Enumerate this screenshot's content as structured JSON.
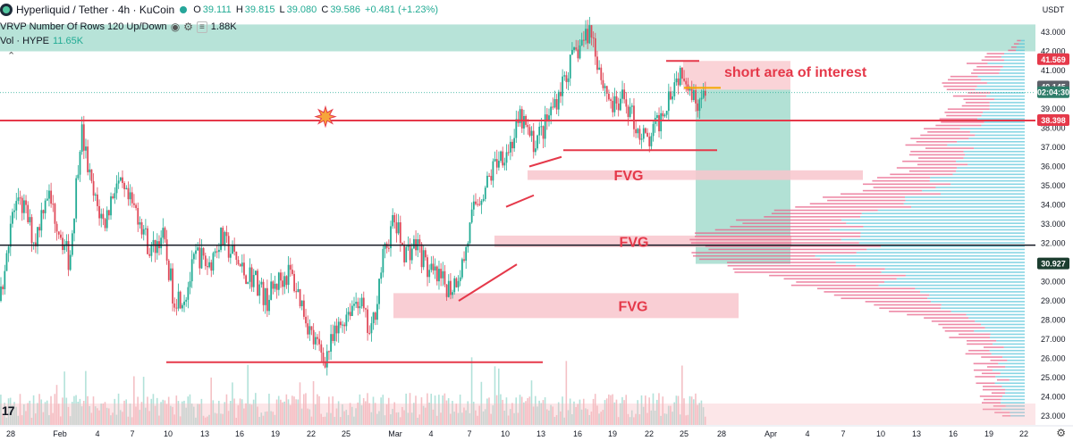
{
  "header": {
    "symbol_title": "Hyperliquid / Tether · 4h · KuCoin",
    "ohlc": {
      "open_label": "O",
      "open": "39.111",
      "high_label": "H",
      "high": "39.815",
      "low_label": "L",
      "low": "39.080",
      "close_label": "C",
      "close": "39.586",
      "change": "+0.481 (+1.23%)"
    },
    "indicator_vrvp": "VRVP Number Of Rows 120 Up/Down",
    "indicator_vrvp_value": "1.88K",
    "indicator_vol": "Vol · HYPE",
    "indicator_vol_value": "11.65K"
  },
  "axis": {
    "currency": "USDT",
    "price_ticks": [
      "43.000",
      "42.000",
      "41.000",
      "40.000",
      "39.000",
      "38.000",
      "37.000",
      "36.000",
      "35.000",
      "34.000",
      "33.000",
      "32.000",
      "31.000",
      "30.000",
      "29.000",
      "28.000",
      "27.000",
      "26.000",
      "25.000",
      "24.000",
      "23.000"
    ],
    "time_ticks": [
      "28",
      "Feb",
      "4",
      "7",
      "10",
      "13",
      "16",
      "19",
      "22",
      "25",
      "Mar",
      "4",
      "7",
      "10",
      "13",
      "16",
      "19",
      "22",
      "25",
      "28",
      "Apr",
      "4",
      "7",
      "10",
      "13",
      "16",
      "19",
      "22"
    ],
    "badges": [
      {
        "value": "41.569",
        "price": 41.569,
        "color": "#e5394a"
      },
      {
        "value": "40.145",
        "price": 40.145,
        "color": "#5d6069"
      },
      {
        "value": "02:04:30",
        "price": 39.85,
        "color": "#2e7d6a"
      },
      {
        "value": "38.398",
        "price": 38.398,
        "color": "#e5394a"
      },
      {
        "value": "30.927",
        "price": 30.927,
        "color": "#1b3d2f"
      }
    ]
  },
  "annotations": {
    "short_area_label": "short area of interest",
    "fvg_labels": [
      "FVG",
      "FVG",
      "FVG"
    ]
  },
  "colors": {
    "up_candle": "#22ab94",
    "down_candle": "#e04a5a",
    "support_line": "#e5394a",
    "fvg_fill": "#f8c6cc",
    "zone_fill": "#9fd9cb",
    "profile_up": "#56c3d9",
    "profile_down": "#e8638a"
  },
  "chart_data": {
    "type": "candlestick",
    "timeframe": "4h",
    "ylim": [
      22.6,
      43.6
    ],
    "price_scale_ticks": [
      43,
      42,
      41,
      40,
      39,
      38,
      37,
      36,
      35,
      34,
      33,
      32,
      31,
      30,
      29,
      28,
      27,
      26,
      25,
      24,
      23
    ],
    "key_levels": {
      "top_supply_zone": [
        42.0,
        43.4
      ],
      "short_area_of_interest": [
        40.0,
        41.5
      ],
      "red_resistance_line": 38.398,
      "black_line": 31.9,
      "bottom_support_line": 25.8,
      "fvg_zones": [
        [
          35.3,
          35.8
        ],
        [
          31.8,
          32.4
        ],
        [
          28.1,
          29.4
        ]
      ]
    },
    "price_path": [
      {
        "t": "Jan 27",
        "p": 29.0
      },
      {
        "t": "Jan 28",
        "p": 33.5
      },
      {
        "t": "Jan 29",
        "p": 34.0
      },
      {
        "t": "Jan 30",
        "p": 32.0
      },
      {
        "t": "Jan 31",
        "p": 34.8
      },
      {
        "t": "Feb 1",
        "p": 33.0
      },
      {
        "t": "Feb 2",
        "p": 31.0
      },
      {
        "t": "Feb 3",
        "p": 38.0
      },
      {
        "t": "Feb 4",
        "p": 34.5
      },
      {
        "t": "Feb 5",
        "p": 33.0
      },
      {
        "t": "Feb 6",
        "p": 35.2
      },
      {
        "t": "Feb 7",
        "p": 34.2
      },
      {
        "t": "Feb 8",
        "p": 33.5
      },
      {
        "t": "Feb 9",
        "p": 31.5
      },
      {
        "t": "Feb 10",
        "p": 32.5
      },
      {
        "t": "Feb 11",
        "p": 29.2
      },
      {
        "t": "Feb 12",
        "p": 29.3
      },
      {
        "t": "Feb 13",
        "p": 31.5
      },
      {
        "t": "Feb 14",
        "p": 30.8
      },
      {
        "t": "Feb 15",
        "p": 32.3
      },
      {
        "t": "Feb 16",
        "p": 31.5
      },
      {
        "t": "Feb 17",
        "p": 30.5
      },
      {
        "t": "Feb 18",
        "p": 30.2
      },
      {
        "t": "Feb 19",
        "p": 29.0
      },
      {
        "t": "Feb 20",
        "p": 30.0
      },
      {
        "t": "Feb 21",
        "p": 30.5
      },
      {
        "t": "Feb 22",
        "p": 29.0
      },
      {
        "t": "Feb 23",
        "p": 27.0
      },
      {
        "t": "Feb 24",
        "p": 26.0
      },
      {
        "t": "Feb 25",
        "p": 27.2
      },
      {
        "t": "Feb 26",
        "p": 28.5
      },
      {
        "t": "Feb 27",
        "p": 29.2
      },
      {
        "t": "Feb 28",
        "p": 27.0
      },
      {
        "t": "Mar 1",
        "p": 31.0
      },
      {
        "t": "Mar 2",
        "p": 33.2
      },
      {
        "t": "Mar 3",
        "p": 31.5
      },
      {
        "t": "Mar 4",
        "p": 32.0
      },
      {
        "t": "Mar 5",
        "p": 30.5
      },
      {
        "t": "Mar 6",
        "p": 30.0
      },
      {
        "t": "Mar 7",
        "p": 29.7
      },
      {
        "t": "Mar 8",
        "p": 31.0
      },
      {
        "t": "Mar 9",
        "p": 34.0
      },
      {
        "t": "Mar 10",
        "p": 35.0
      },
      {
        "t": "Mar 11",
        "p": 36.5
      },
      {
        "t": "Mar 12",
        "p": 37.0
      },
      {
        "t": "Mar 13",
        "p": 38.5
      },
      {
        "t": "Mar 14",
        "p": 37.2
      },
      {
        "t": "Mar 15",
        "p": 38.0
      },
      {
        "t": "Mar 16",
        "p": 39.5
      },
      {
        "t": "Mar 17",
        "p": 41.0
      },
      {
        "t": "Mar 18",
        "p": 42.2
      },
      {
        "t": "Mar 19",
        "p": 43.2
      },
      {
        "t": "Mar 20",
        "p": 40.5
      },
      {
        "t": "Mar 21",
        "p": 39.0
      },
      {
        "t": "Mar 22",
        "p": 39.5
      },
      {
        "t": "Mar 23",
        "p": 38.0
      },
      {
        "t": "Mar 24",
        "p": 37.2
      },
      {
        "t": "Mar 25",
        "p": 38.5
      },
      {
        "t": "Mar 25b",
        "p": 40.2
      },
      {
        "t": "Mar 26",
        "p": 41.2
      },
      {
        "t": "Mar 26b",
        "p": 39.5
      },
      {
        "t": "Mar 27",
        "p": 39.6
      }
    ],
    "volume_profile_peak_price": 31.9
  }
}
